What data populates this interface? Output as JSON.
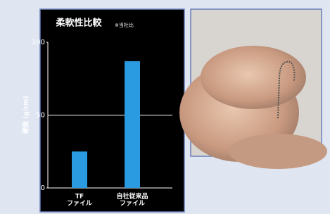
{
  "chart_data": {
    "type": "bar",
    "title": "柔軟性比較",
    "note": "※当社比",
    "y_label": "硬度 (g/cm)",
    "categories": [
      [
        "TF",
        "ファイル"
      ],
      [
        "自社従来品",
        "ファイル"
      ]
    ],
    "values": [
      25,
      87
    ],
    "color": "#2a9be0",
    "ylim": [
      0,
      100
    ],
    "yticks": [
      0,
      50,
      100
    ],
    "grid": true
  }
}
